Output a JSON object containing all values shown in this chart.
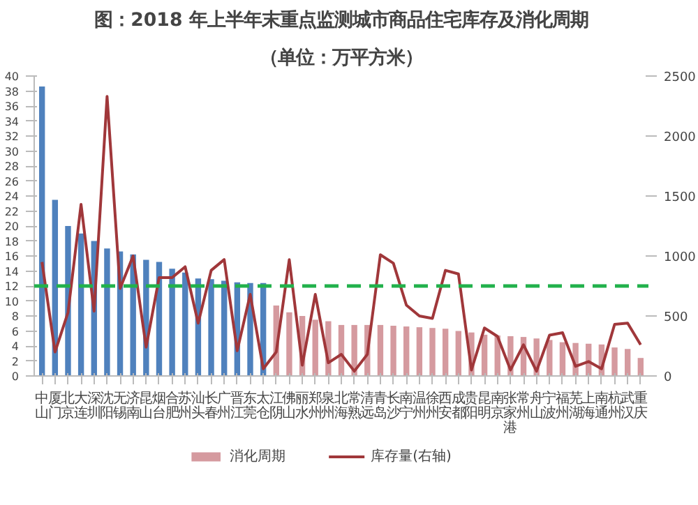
{
  "chart_data": {
    "type": "bar",
    "title": "图：2018 年上半年末重点监测城市商品住宅库存及消化周期",
    "subtitle": "（单位：万平方米）",
    "categories": [
      "中山",
      "厦门",
      "北京",
      "大连",
      "深圳",
      "沈阳",
      "无锡",
      "济南",
      "昆山",
      "烟台",
      "合肥",
      "苏州",
      "汕头",
      "长春",
      "广州",
      "晋江",
      "东莞",
      "太仓",
      "江阴",
      "佛山",
      "丽水",
      "郑州",
      "泉州",
      "北海",
      "常熟",
      "清远",
      "青岛",
      "长沙",
      "南宁",
      "温州",
      "徐州",
      "西安",
      "成都",
      "贵阳",
      "昆明",
      "南京",
      "张家港",
      "常州",
      "舟山",
      "宁波",
      "福州",
      "芜湖",
      "上海",
      "南通",
      "杭州",
      "武汉",
      "重庆"
    ],
    "series": [
      {
        "name": "消化周期",
        "type": "bar",
        "color": "#d59a9f",
        "colors": [
          "#4f81bd",
          "#4f81bd",
          "#4f81bd",
          "#4f81bd",
          "#4f81bd",
          "#4f81bd",
          "#4f81bd",
          "#4f81bd",
          "#4f81bd",
          "#4f81bd",
          "#4f81bd",
          "#4f81bd",
          "#4f81bd",
          "#4f81bd",
          "#4f81bd",
          "#4f81bd",
          "#4f81bd",
          "#4f81bd",
          "#d59a9f",
          "#d59a9f",
          "#d59a9f",
          "#d59a9f",
          "#d59a9f",
          "#d59a9f",
          "#d59a9f",
          "#d59a9f",
          "#d59a9f",
          "#d59a9f",
          "#d59a9f",
          "#d59a9f",
          "#d59a9f",
          "#d59a9f",
          "#d59a9f",
          "#d59a9f",
          "#d59a9f",
          "#d59a9f",
          "#d59a9f",
          "#d59a9f",
          "#d59a9f",
          "#d59a9f",
          "#d59a9f",
          "#d59a9f",
          "#d59a9f",
          "#d59a9f",
          "#d59a9f",
          "#d59a9f",
          "#d59a9f"
        ],
        "values": [
          38.6,
          23.5,
          20,
          19,
          18,
          17,
          16.6,
          16.2,
          15.5,
          15.2,
          14.3,
          13.8,
          13.0,
          12.9,
          12.7,
          12.5,
          12.4,
          12.4,
          9.4,
          8.5,
          8.0,
          7.5,
          7.3,
          6.8,
          6.8,
          6.8,
          6.8,
          6.7,
          6.6,
          6.5,
          6.4,
          6.3,
          6.0,
          5.8,
          5.5,
          5.4,
          5.3,
          5.2,
          5.0,
          4.8,
          4.5,
          4.4,
          4.3,
          4.2,
          3.8,
          3.6,
          2.4
        ]
      },
      {
        "name": "库存量(右轴)",
        "type": "line",
        "axis": "y2",
        "color": "#a0373a",
        "values": [
          950,
          200,
          530,
          1430,
          540,
          2330,
          730,
          1000,
          240,
          820,
          820,
          910,
          440,
          880,
          970,
          210,
          680,
          60,
          200,
          970,
          90,
          680,
          110,
          180,
          40,
          180,
          1010,
          940,
          590,
          500,
          480,
          880,
          850,
          50,
          400,
          330,
          50,
          260,
          40,
          340,
          360,
          80,
          120,
          60,
          430,
          440,
          260
        ]
      }
    ],
    "ylim": [
      0,
      40
    ],
    "yticks": [
      0,
      2,
      4,
      6,
      8,
      10,
      12,
      14,
      16,
      18,
      20,
      22,
      24,
      26,
      28,
      30,
      32,
      34,
      36,
      38,
      40
    ],
    "y2lim": [
      0,
      2500
    ],
    "y2ticks": [
      0,
      500,
      1000,
      1500,
      2000,
      2500
    ],
    "ref_lines": [
      {
        "axis": "y",
        "value": 12,
        "color": "#22b14c",
        "line_style": "dashed"
      }
    ],
    "legend": "bottom"
  }
}
